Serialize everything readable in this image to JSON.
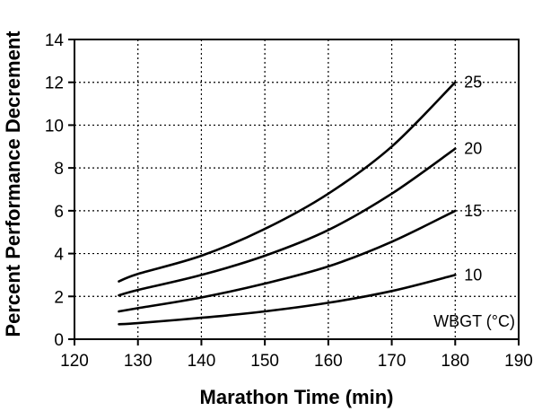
{
  "chart_data": {
    "type": "line",
    "title": "",
    "xlabel": "Marathon Time (min)",
    "ylabel": "Percent Performance Decrement",
    "xlim": [
      120,
      190
    ],
    "ylim": [
      0,
      14
    ],
    "x_ticks": [
      120,
      130,
      140,
      150,
      160,
      170,
      180,
      190
    ],
    "y_ticks": [
      0,
      2,
      4,
      6,
      8,
      10,
      12,
      14
    ],
    "grid": true,
    "legend_title": "WBGT (°C)",
    "legend_position": "bottom-right",
    "x": [
      127,
      130,
      140,
      150,
      160,
      170,
      180
    ],
    "series": [
      {
        "name": "10",
        "values": [
          0.7,
          0.75,
          1.0,
          1.3,
          1.7,
          2.25,
          3.0
        ]
      },
      {
        "name": "15",
        "values": [
          1.3,
          1.45,
          1.95,
          2.6,
          3.4,
          4.55,
          6.0
        ]
      },
      {
        "name": "20",
        "values": [
          2.05,
          2.3,
          3.0,
          3.9,
          5.1,
          6.8,
          8.9
        ]
      },
      {
        "name": "25",
        "values": [
          2.7,
          3.05,
          3.9,
          5.15,
          6.8,
          9.0,
          12.0
        ]
      }
    ]
  }
}
